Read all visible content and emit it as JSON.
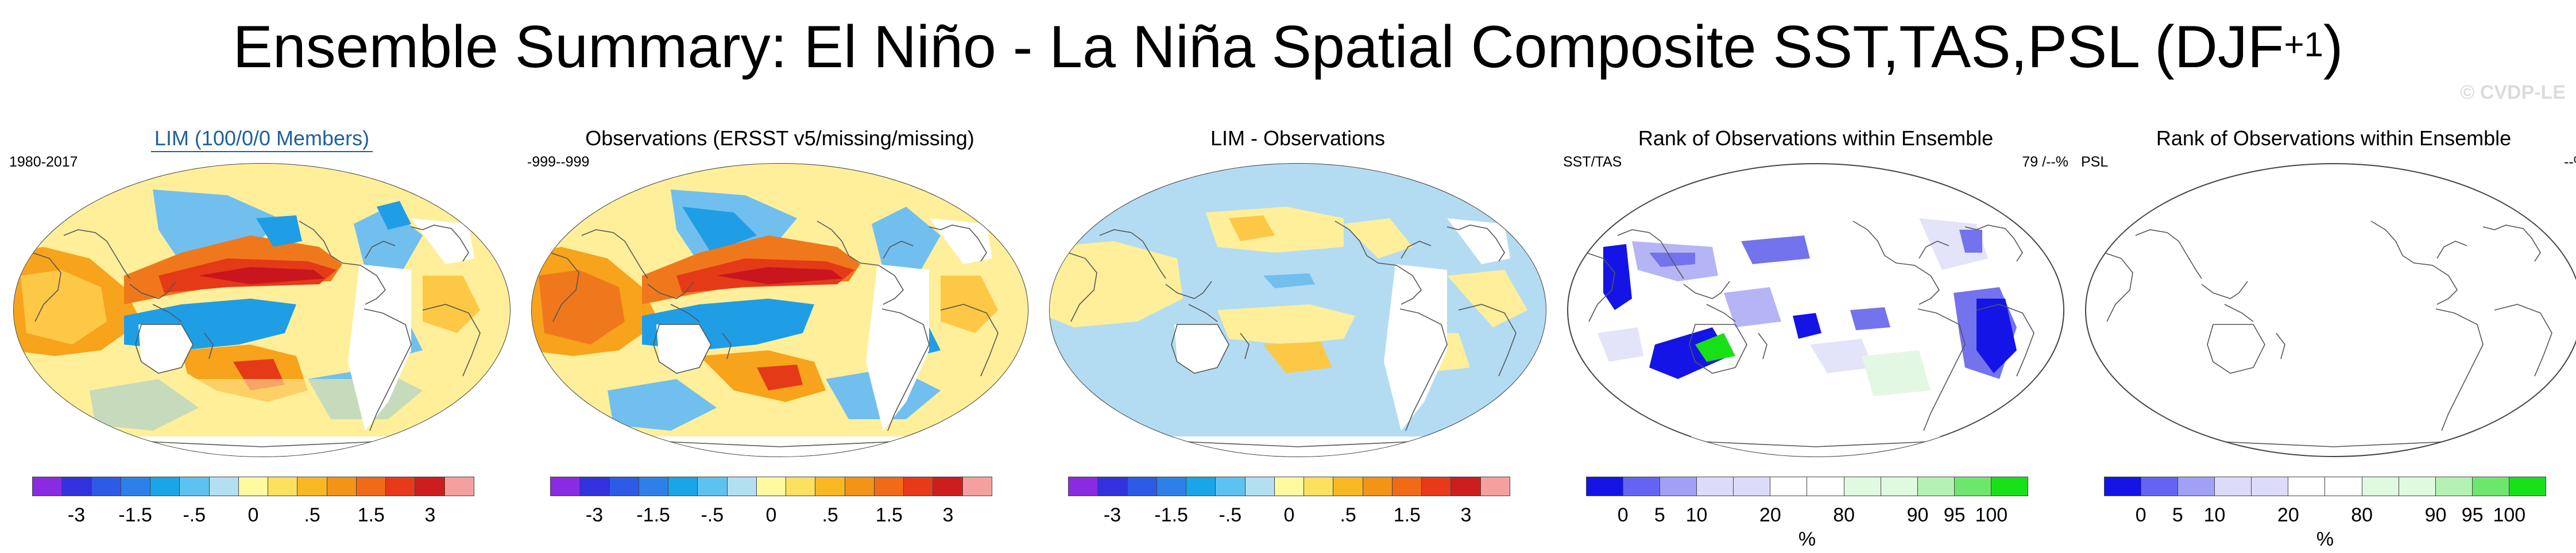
{
  "title": {
    "main": "Ensemble Summary: El Niño - La Niña Spatial Composite SST,TAS,PSL (DJF",
    "sup": "+1",
    "close": ")"
  },
  "watermark": "© CVDP-LE",
  "colors": {
    "ocean_warm_1": "#ffef9a",
    "ocean_warm_2": "#fcc846",
    "ocean_warm_3": "#f7a31b",
    "ocean_warm_4": "#f0781c",
    "ocean_warm_5": "#e43a18",
    "ocean_warm_6": "#c8151e",
    "ocean_cool_1": "#b3dcf2",
    "ocean_cool_2": "#71bfee",
    "ocean_cool_3": "#1f9ee6",
    "rank_blue_1": "#1414e6",
    "rank_blue_2": "#7373ee",
    "rank_blue_3": "#b5b5f5",
    "rank_blue_4": "#e3e3fa",
    "rank_green_1": "#e3f8e3",
    "rank_green_2": "#b5f0b5",
    "rank_green_3": "#6ee66e",
    "rank_green_4": "#18e018"
  },
  "composite_scale": {
    "colors": [
      "#8a2be2",
      "#3232dc",
      "#2e5ae6",
      "#2e80e8",
      "#1aa6e6",
      "#5ec2f0",
      "#b4def2",
      "#fffaa0",
      "#fce060",
      "#f7b824",
      "#f29418",
      "#f06a18",
      "#e63a1a",
      "#cc1e1e",
      "#f5a0a0"
    ],
    "ticks": [
      "-3",
      "-1.5",
      "-.5",
      "0",
      ".5",
      "1.5",
      "3"
    ]
  },
  "rank_scale": {
    "colors": [
      "#1414e6",
      "#6464f0",
      "#a0a0f5",
      "#dcdcfa",
      "#dcdcfa",
      "#ffffff",
      "#ffffff",
      "#e0fae0",
      "#e0fae0",
      "#b4f2b4",
      "#6ee66e",
      "#18e018"
    ],
    "ticks": [
      "0",
      "5",
      "10",
      "20",
      "80",
      "90",
      "95",
      "100"
    ],
    "unit": "%"
  },
  "panels": [
    {
      "title": "LIM (100/0/0 Members)",
      "left": "1980-2017",
      "right": ""
    },
    {
      "title": "Observations (ERSST v5/missing/missing)",
      "left": "-999--999",
      "right": ""
    },
    {
      "title": "LIM - Observations",
      "left": "",
      "right": ""
    },
    {
      "title": "Rank of Observations within Ensemble",
      "left": "SST/TAS",
      "right": "79 /--%"
    },
    {
      "title": "Rank of Observations within Ensemble",
      "left": "PSL",
      "right": "--%"
    }
  ],
  "chart_data": [
    {
      "type": "heatmap",
      "title": "LIM (100/0/0 Members)",
      "subtitle": "1980-2017",
      "projection": "robinson",
      "colorbar_ticks": [
        "-3",
        "-1.5",
        "-.5",
        "0",
        ".5",
        "1.5",
        "3"
      ]
    },
    {
      "type": "heatmap",
      "title": "Observations (ERSST v5/missing/missing)",
      "subtitle": "-999--999",
      "projection": "robinson",
      "colorbar_ticks": [
        "-3",
        "-1.5",
        "-.5",
        "0",
        ".5",
        "1.5",
        "3"
      ]
    },
    {
      "type": "heatmap",
      "title": "LIM - Observations",
      "projection": "robinson",
      "colorbar_ticks": [
        "-3",
        "-1.5",
        "-.5",
        "0",
        ".5",
        "1.5",
        "3"
      ]
    },
    {
      "type": "heatmap",
      "title": "Rank of Observations within Ensemble",
      "subtitle": "SST/TAS",
      "annotation": "79 /--%",
      "projection": "robinson",
      "colorbar_ticks": [
        "0",
        "5",
        "10",
        "20",
        "80",
        "90",
        "95",
        "100"
      ],
      "colorbar_unit": "%"
    },
    {
      "type": "heatmap",
      "title": "Rank of Observations within Ensemble",
      "subtitle": "PSL",
      "annotation": "--%",
      "projection": "robinson",
      "colorbar_ticks": [
        "0",
        "5",
        "10",
        "20",
        "80",
        "90",
        "95",
        "100"
      ],
      "colorbar_unit": "%"
    }
  ]
}
